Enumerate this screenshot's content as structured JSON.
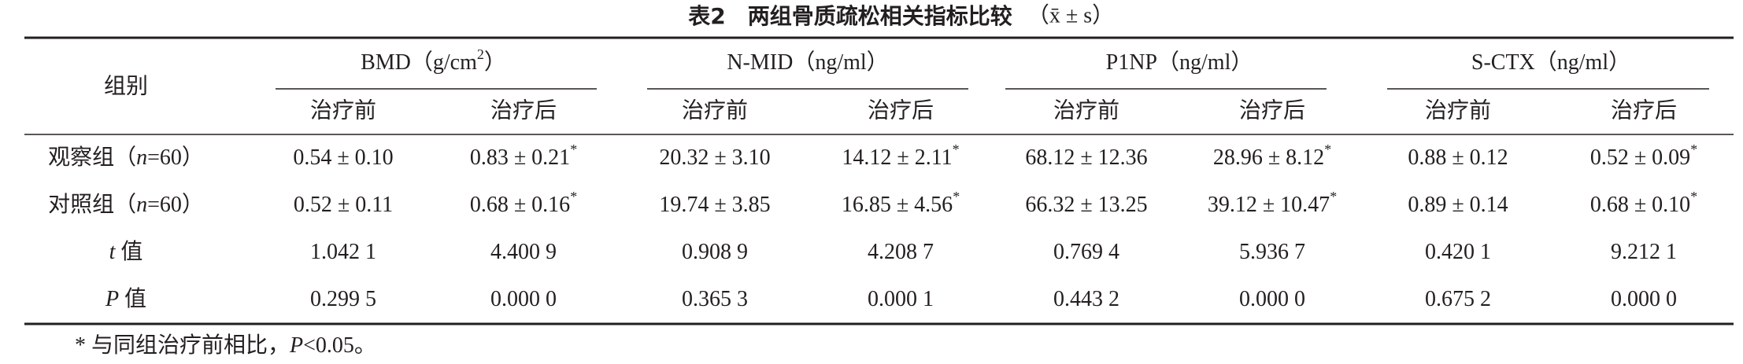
{
  "title": "表2　两组骨质疏松相关指标比较",
  "title_stat": "（x̄ ± s）",
  "table": {
    "corner": "组别",
    "groups": [
      {
        "text": "BMD（g/cm",
        "sup": "2",
        "post": "）"
      },
      {
        "text": "N-MID（ng/ml）"
      },
      {
        "text": "P1NP（ng/ml）"
      },
      {
        "text": "S-CTX（ng/ml）"
      }
    ],
    "subheaders": [
      "治疗前",
      "治疗后",
      "治疗前",
      "治疗后",
      "治疗前",
      "治疗后",
      "治疗前",
      "治疗后"
    ],
    "rows": [
      {
        "label": {
          "text": "观察组（",
          "italic": "n",
          "post": "=60）"
        },
        "cells": [
          {
            "text": "0.54 ± 0.10"
          },
          {
            "text": "0.83 ± 0.21",
            "sup": "*"
          },
          {
            "text": "20.32 ± 3.10"
          },
          {
            "text": "14.12 ± 2.11",
            "sup": "*"
          },
          {
            "text": "68.12 ± 12.36"
          },
          {
            "text": "28.96 ± 8.12",
            "sup": "*"
          },
          {
            "text": "0.88 ± 0.12"
          },
          {
            "text": "0.52 ± 0.09",
            "sup": "*"
          }
        ]
      },
      {
        "label": {
          "text": "对照组（",
          "italic": "n",
          "post": "=60）"
        },
        "cells": [
          {
            "text": "0.52 ± 0.11"
          },
          {
            "text": "0.68 ± 0.16",
            "sup": "*"
          },
          {
            "text": "19.74 ± 3.85"
          },
          {
            "text": "16.85 ± 4.56",
            "sup": "*"
          },
          {
            "text": "66.32 ± 13.25"
          },
          {
            "text": "39.12 ± 10.47",
            "sup": "*"
          },
          {
            "text": "0.89 ± 0.14"
          },
          {
            "text": "0.68 ± 0.10",
            "sup": "*"
          }
        ]
      },
      {
        "label": {
          "italic": "t",
          "post": " 值"
        },
        "cells": [
          {
            "text": "1.042 1"
          },
          {
            "text": "4.400 9"
          },
          {
            "text": "0.908 9"
          },
          {
            "text": "4.208 7"
          },
          {
            "text": "0.769 4"
          },
          {
            "text": "5.936 7"
          },
          {
            "text": "0.420 1"
          },
          {
            "text": "9.212 1"
          }
        ]
      },
      {
        "label": {
          "italic": "P",
          "post": " 值"
        },
        "cells": [
          {
            "text": "0.299 5"
          },
          {
            "text": "0.000 0"
          },
          {
            "text": "0.365 3"
          },
          {
            "text": "0.000 1"
          },
          {
            "text": "0.443 2"
          },
          {
            "text": "0.000 0"
          },
          {
            "text": "0.675 2"
          },
          {
            "text": "0.000 0"
          }
        ]
      }
    ]
  },
  "footnote": {
    "text": "* 与同组治疗前相比，",
    "italic": "P",
    "post": "<0.05。"
  }
}
